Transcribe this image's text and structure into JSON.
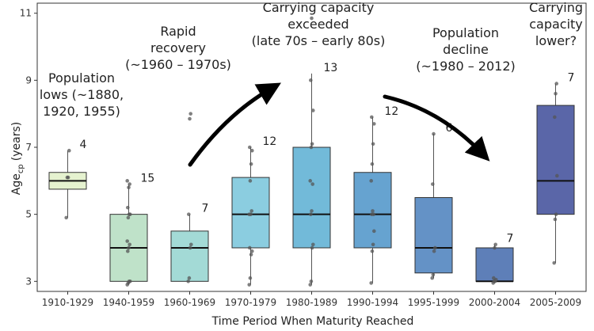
{
  "chart_data": {
    "type": "box",
    "xlabel": "Time Period When Maturity Reached",
    "ylabel_main": "Age",
    "ylabel_sub": "cp",
    "ylabel_unit": "(years)",
    "ylim": [
      2.7,
      11.3
    ],
    "yticks": [
      3,
      5,
      7,
      9,
      11
    ],
    "grid": false,
    "categories": [
      "1910-1929",
      "1940-1959",
      "1960-1969",
      "1970-1979",
      "1980-1989",
      "1990-1994",
      "1995-1999",
      "2000-2004",
      "2005-2009"
    ],
    "colors": [
      "#e5f2cf",
      "#bfe2c9",
      "#a3dad6",
      "#8bcde0",
      "#72bad9",
      "#66a3d0",
      "#6492c6",
      "#5e7fb8",
      "#5a66a8"
    ],
    "boxes": [
      {
        "category": "1910-1929",
        "min": 4.9,
        "q1": 5.75,
        "median": 6.0,
        "q3": 6.25,
        "max": 6.9,
        "n": "4",
        "points": [
          4.9,
          6.1,
          6.1,
          6.9
        ]
      },
      {
        "category": "1940-1959",
        "min": 2.9,
        "q1": 3.0,
        "median": 4.0,
        "q3": 5.0,
        "max": 5.9,
        "n": "15",
        "points": [
          2.9,
          2.95,
          3.0,
          3.0,
          3.9,
          4.0,
          4.1,
          4.2,
          4.9,
          5.0,
          5.0,
          5.2,
          5.8,
          5.9,
          6.0
        ]
      },
      {
        "category": "1960-1969",
        "min": 3.0,
        "q1": 3.0,
        "median": 4.0,
        "q3": 4.5,
        "max": 5.0,
        "n": "7",
        "points": [
          3.0,
          3.1,
          4.0,
          4.1,
          5.0,
          7.85,
          8.0
        ]
      },
      {
        "category": "1970-1979",
        "min": 2.9,
        "q1": 4.0,
        "median": 5.0,
        "q3": 6.1,
        "max": 7.0,
        "n": "12",
        "points": [
          2.9,
          3.1,
          3.8,
          3.9,
          4.0,
          5.0,
          5.1,
          5.0,
          6.0,
          6.5,
          6.9,
          7.0
        ]
      },
      {
        "category": "1980-1989",
        "min": 2.9,
        "q1": 4.0,
        "median": 5.0,
        "q3": 7.0,
        "max": 9.2,
        "n": "13",
        "points": [
          2.9,
          3.0,
          4.0,
          4.1,
          5.0,
          5.1,
          5.9,
          6.0,
          7.0,
          7.1,
          8.1,
          9.0,
          10.85
        ]
      },
      {
        "category": "1990-1994",
        "min": 2.95,
        "q1": 4.0,
        "median": 5.0,
        "q3": 6.25,
        "max": 7.9,
        "n": "12",
        "points": [
          2.95,
          3.9,
          4.1,
          4.5,
          5.0,
          5.1,
          5.0,
          6.0,
          6.5,
          7.1,
          7.7,
          7.9
        ]
      },
      {
        "category": "1995-1999",
        "min": 3.1,
        "q1": 3.25,
        "median": 4.0,
        "q3": 5.5,
        "max": 7.4,
        "n": "6",
        "points": [
          3.1,
          3.2,
          3.9,
          4.0,
          5.9,
          7.4
        ]
      },
      {
        "category": "2000-2004",
        "min": 2.95,
        "q1": 3.0,
        "median": 3.0,
        "q3": 4.0,
        "max": 4.1,
        "n": "7",
        "points": [
          2.95,
          3.0,
          3.0,
          3.05,
          3.1,
          4.0,
          4.1
        ]
      },
      {
        "category": "2005-2009",
        "min": 3.55,
        "q1": 5.0,
        "median": 6.0,
        "q3": 8.25,
        "max": 8.9,
        "n": "7",
        "points": [
          3.55,
          4.85,
          5.0,
          6.15,
          7.9,
          8.6,
          8.9
        ]
      }
    ],
    "annotations": [
      {
        "id": "population-lows",
        "lines": [
          "Population",
          "lows (~1880,",
          "1920, 1955)"
        ]
      },
      {
        "id": "rapid-recovery",
        "lines": [
          "Rapid",
          "recovery",
          "(~1960 – 1970s)"
        ]
      },
      {
        "id": "carrying-capacity-exceeded",
        "lines": [
          "Carrying capacity",
          "exceeded",
          "(late 70s – early 80s)"
        ]
      },
      {
        "id": "population-decline",
        "lines": [
          "Population",
          "decline",
          "(~1980 – 2012)"
        ]
      },
      {
        "id": "carrying-capacity-lower",
        "lines": [
          "Carrying",
          "capacity",
          "lower?"
        ]
      }
    ]
  }
}
